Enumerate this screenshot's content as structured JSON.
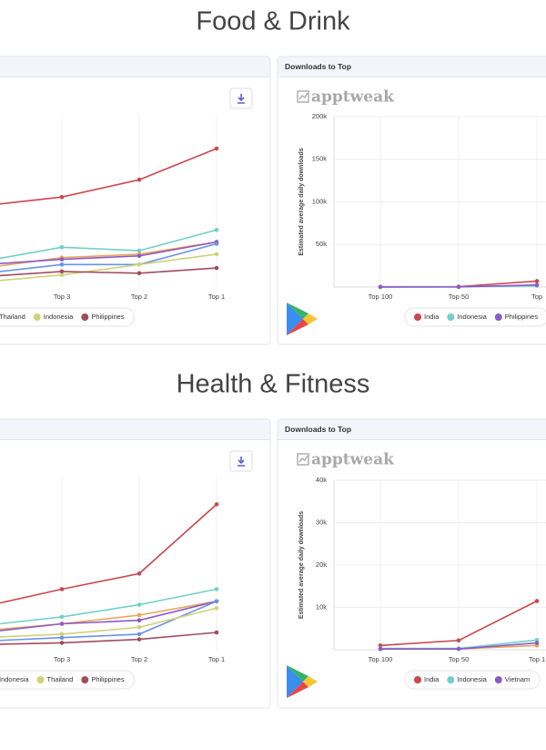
{
  "section_titles": [
    "Food & Drink",
    "Health & Fitness"
  ],
  "chart_data": [
    {
      "type": "line",
      "categories": [
        null,
        "Top 3",
        "Top 2",
        "Top 1"
      ],
      "ylim": [
        0,
        100
      ],
      "series": [
        {
          "color": "#c9474f",
          "values": [
            47,
            52,
            62,
            80
          ]
        },
        {
          "color": "#72cfc9",
          "values": [
            15,
            23,
            21,
            33
          ]
        },
        {
          "color": "#eba55c",
          "values": [
            11,
            17,
            19,
            26
          ]
        },
        {
          "color": "#8a5cc8",
          "values": [
            13,
            16,
            18,
            26
          ]
        },
        {
          "name": "Thailand",
          "color": "#6a93e8",
          "values": [
            8,
            13,
            13,
            25
          ]
        },
        {
          "name": "Indonesia",
          "color": "#cfd27a",
          "values": [
            3,
            7,
            13,
            19
          ]
        },
        {
          "name": "Philippines",
          "color": "#a04d5e",
          "values": [
            6,
            9,
            8,
            11
          ]
        }
      ]
    },
    {
      "type": "line",
      "title": "Downloads to Top",
      "watermark": "apptweak",
      "y_label": "Estimated average daily downloads",
      "categories": [
        "Top 100",
        "Top 50",
        "Top"
      ],
      "ylim": [
        0,
        200000
      ],
      "yticks": [
        {
          "value": 50000,
          "label": "50k"
        },
        {
          "value": 100000,
          "label": "100k"
        },
        {
          "value": 150000,
          "label": "150k"
        },
        {
          "value": 200000,
          "label": "200k"
        }
      ],
      "series": [
        {
          "name": "India",
          "color": "#c9474f",
          "values": [
            300,
            500,
            7000
          ]
        },
        {
          "name": "Indonesia",
          "color": "#72cfc9",
          "values": [
            100,
            200,
            1500
          ]
        },
        {
          "name": "Philippines",
          "color": "#8a5cc8",
          "values": [
            100,
            200,
            2500
          ]
        }
      ]
    },
    {
      "type": "line",
      "categories": [
        null,
        "Top 3",
        "Top 2",
        "Top 1"
      ],
      "ylim": [
        0,
        100
      ],
      "series": [
        {
          "color": "#c9474f",
          "values": [
            25,
            35,
            44,
            84
          ]
        },
        {
          "color": "#72cfc9",
          "values": [
            14,
            19,
            26,
            35
          ]
        },
        {
          "color": "#eba55c",
          "values": [
            11,
            15,
            20,
            28
          ]
        },
        {
          "color": "#8a5cc8",
          "values": [
            10,
            15,
            17,
            28
          ]
        },
        {
          "name": "Indonesia",
          "color": "#6a93e8",
          "values": [
            5,
            7,
            9,
            28
          ]
        },
        {
          "name": "Thailand",
          "color": "#cfd27a",
          "values": [
            7,
            9,
            13,
            24
          ]
        },
        {
          "name": "Philippines",
          "color": "#a04d5e",
          "values": [
            3,
            4,
            6,
            10
          ]
        }
      ]
    },
    {
      "type": "line",
      "title": "Downloads to Top",
      "watermark": "apptweak",
      "y_label": "Estimated average daily downloads",
      "categories": [
        "Top 100",
        "Top 50",
        "Top 1"
      ],
      "ylim": [
        0,
        40000
      ],
      "yticks": [
        {
          "value": 10000,
          "label": "10k"
        },
        {
          "value": 20000,
          "label": "20k"
        },
        {
          "value": 30000,
          "label": "30k"
        },
        {
          "value": 40000,
          "label": "40k"
        }
      ],
      "series": [
        {
          "color": "#eba55c",
          "values": [
            200,
            200,
            1000
          ]
        },
        {
          "name": "India",
          "color": "#c9474f",
          "values": [
            1000,
            2200,
            11500
          ]
        },
        {
          "name": "Indonesia",
          "color": "#72cfc9",
          "values": [
            300,
            300,
            2300
          ]
        },
        {
          "name": "Vietnam",
          "color": "#8a5cc8",
          "values": [
            200,
            200,
            1600
          ]
        }
      ]
    }
  ]
}
